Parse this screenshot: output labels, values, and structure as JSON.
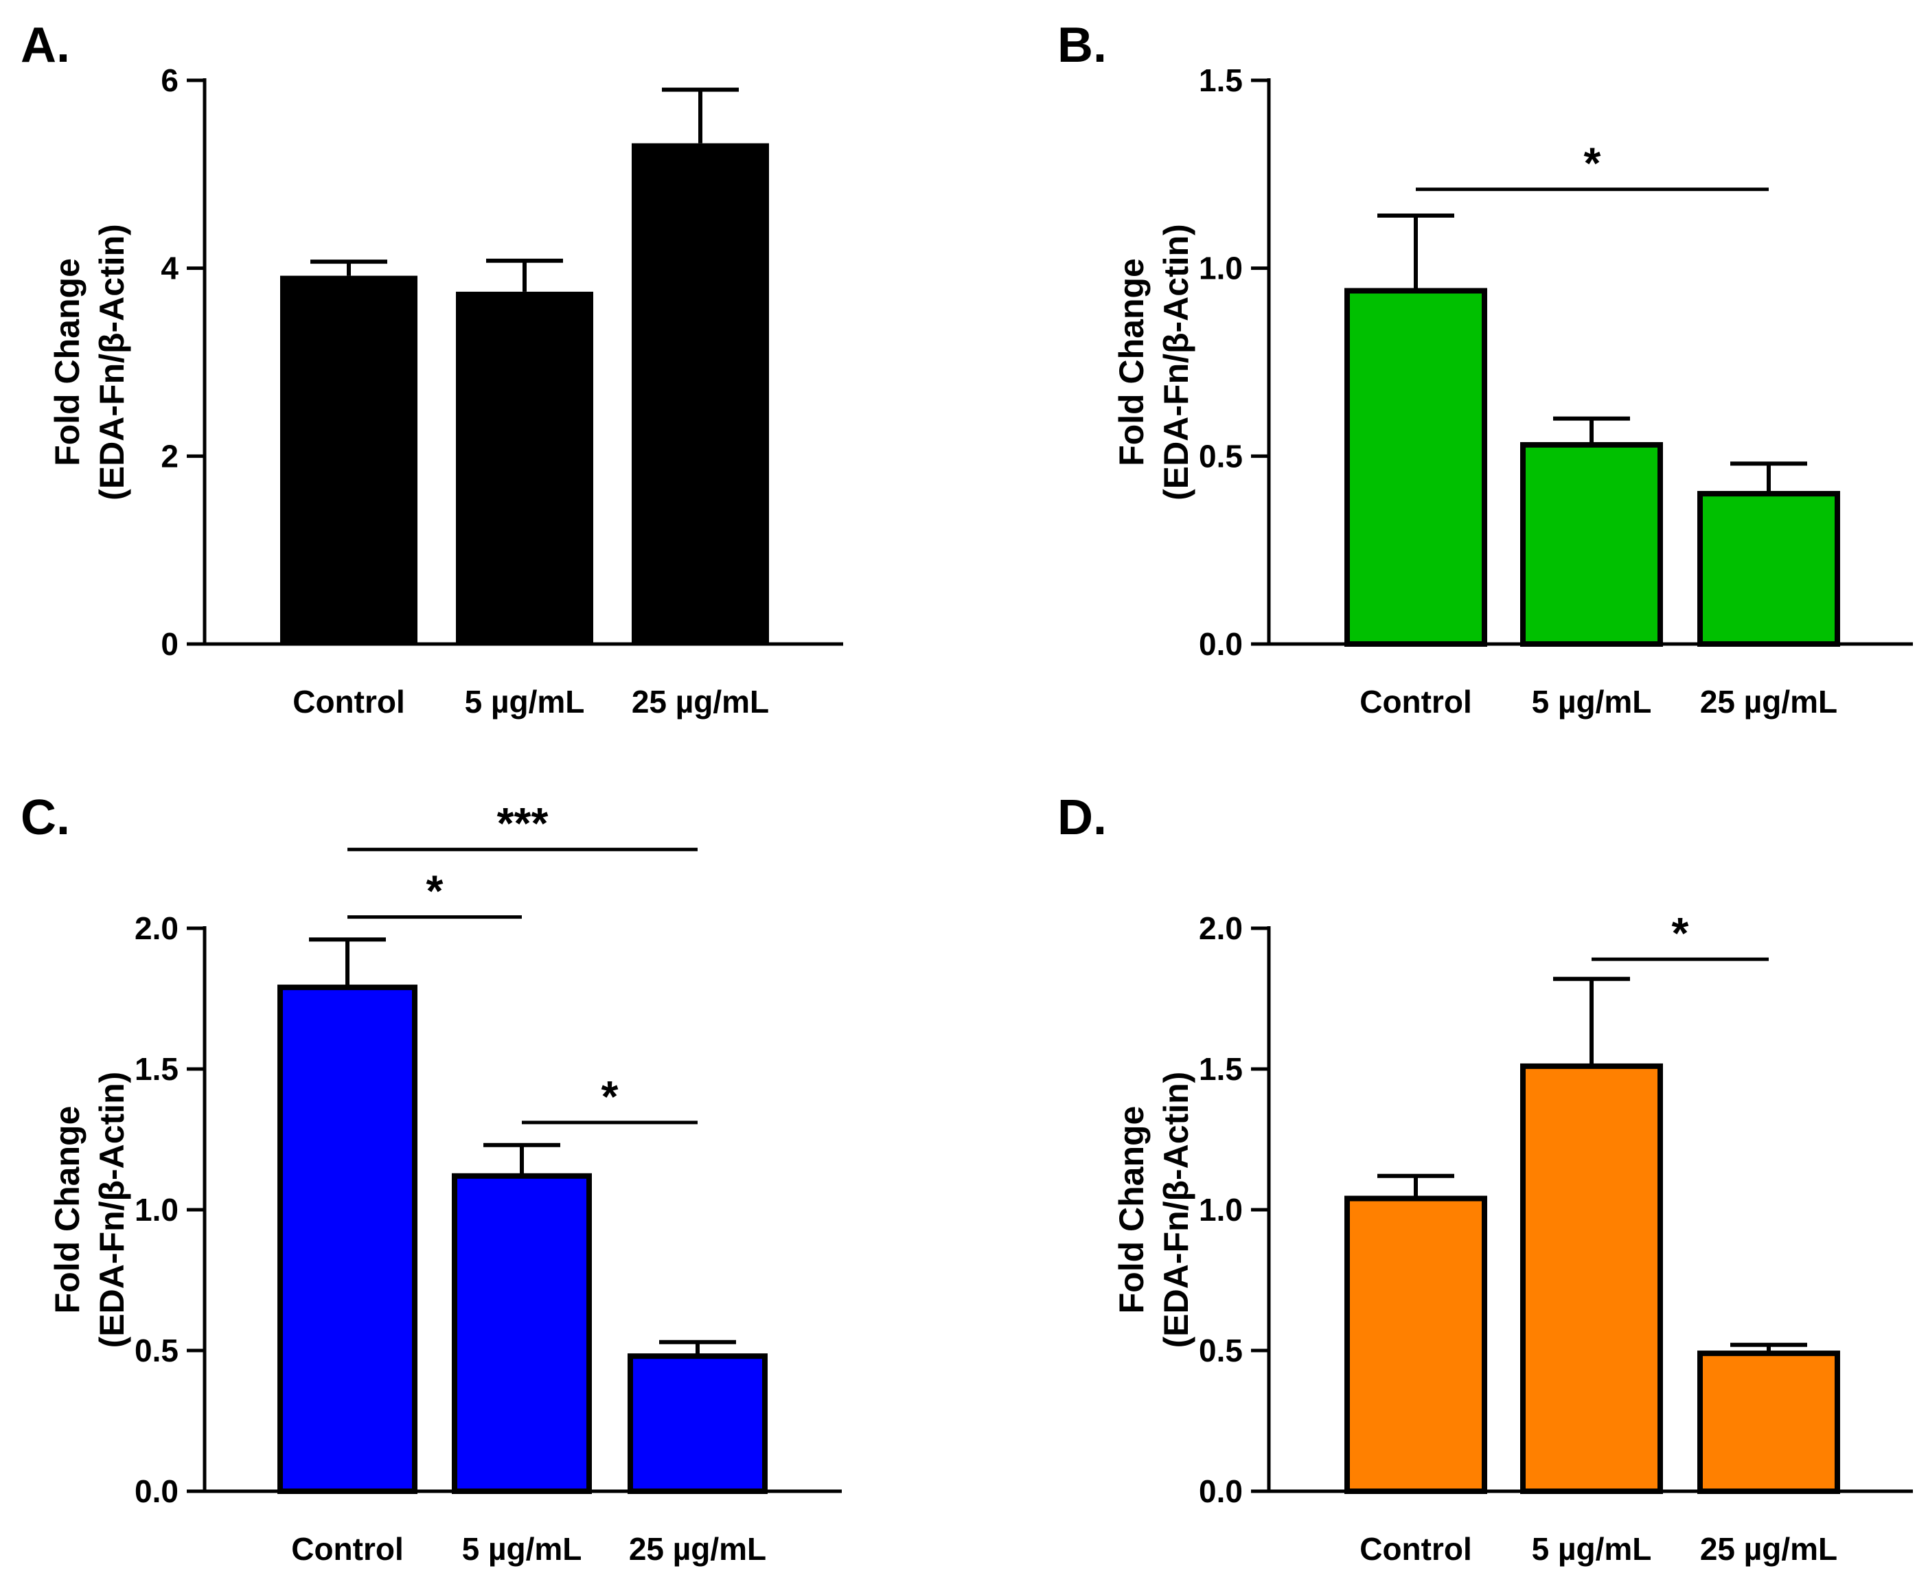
{
  "chart_data": [
    {
      "panel": "A.",
      "type": "bar",
      "categories": [
        "Control",
        "5 µg/mL",
        "25 µg/mL"
      ],
      "values": [
        3.92,
        3.75,
        5.33
      ],
      "errors": [
        0.15,
        0.33,
        0.57
      ],
      "ylabel_lines": [
        "Fold Change",
        "(EDA-Fn/β-Actin)"
      ],
      "ylim": [
        0,
        6
      ],
      "yticks": [
        0,
        2,
        4,
        6
      ],
      "ytick_labels": [
        "0",
        "2",
        "4",
        "6"
      ],
      "bar_fill": "#000000",
      "significance": []
    },
    {
      "panel": "B.",
      "type": "bar",
      "categories": [
        "Control",
        "5 µg/mL",
        "25 µg/mL"
      ],
      "values": [
        0.94,
        0.53,
        0.4
      ],
      "errors": [
        0.2,
        0.07,
        0.08
      ],
      "ylabel_lines": [
        "Fold Change",
        "(EDA-Fn/β-Actin)"
      ],
      "ylim": [
        0,
        1.5
      ],
      "yticks": [
        0,
        0.5,
        1.0,
        1.5
      ],
      "ytick_labels": [
        "0.0",
        "0.5",
        "1.0",
        "1.5"
      ],
      "bar_fill": "#00c000",
      "significance": [
        {
          "from": 0,
          "to": 2,
          "label": "*",
          "level": 1.21
        }
      ]
    },
    {
      "panel": "C.",
      "type": "bar",
      "categories": [
        "Control",
        "5 µg/mL",
        "25 µg/mL"
      ],
      "values": [
        1.79,
        1.12,
        0.48
      ],
      "errors": [
        0.17,
        0.11,
        0.05
      ],
      "ylabel_lines": [
        "Fold Change",
        "(EDA-Fn/β-Actin)"
      ],
      "ylim": [
        0,
        2.0
      ],
      "yticks": [
        0,
        0.5,
        1.0,
        1.5,
        2.0
      ],
      "ytick_labels": [
        "0.0",
        "0.5",
        "1.0",
        "1.5",
        "2.0"
      ],
      "bar_fill": "#0000ff",
      "significance": [
        {
          "from": 0,
          "to": 2,
          "label": "***",
          "level": 2.28
        },
        {
          "from": 0,
          "to": 1,
          "label": "*",
          "level": 2.04
        },
        {
          "from": 1,
          "to": 2,
          "label": "*",
          "level": 1.31
        }
      ]
    },
    {
      "panel": "D.",
      "type": "bar",
      "categories": [
        "Control",
        "5 µg/mL",
        "25 µg/mL"
      ],
      "values": [
        1.04,
        1.51,
        0.49
      ],
      "errors": [
        0.08,
        0.31,
        0.03
      ],
      "ylabel_lines": [
        "Fold Change",
        "(EDA-Fn/β-Actin)"
      ],
      "ylim": [
        0,
        2.0
      ],
      "yticks": [
        0,
        0.5,
        1.0,
        1.5,
        2.0
      ],
      "ytick_labels": [
        "0.0",
        "0.5",
        "1.0",
        "1.5",
        "2.0"
      ],
      "bar_fill": "#ff8000",
      "significance": [
        {
          "from": 1,
          "to": 2,
          "label": "*",
          "level": 1.89
        }
      ]
    }
  ]
}
